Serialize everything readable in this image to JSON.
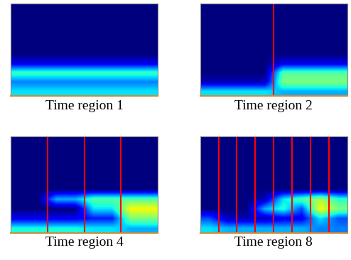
{
  "chart_data": [
    {
      "type": "heatmap",
      "title": "Time region 1",
      "tick_labels": false,
      "color_range": [
        0,
        1
      ],
      "boundaries": [],
      "cells": [
        [
          0,
          0,
          0,
          0,
          0,
          0,
          0,
          0
        ],
        [
          0,
          0,
          0,
          0,
          0,
          0,
          0,
          0
        ],
        [
          0,
          0,
          0,
          0,
          0,
          0,
          0,
          0
        ],
        [
          0,
          0,
          0,
          0,
          0,
          0,
          0,
          0
        ],
        [
          0,
          0,
          0,
          0,
          0,
          0,
          0,
          0
        ],
        [
          0,
          0,
          0,
          0,
          0,
          0,
          0,
          0
        ],
        [
          0.1,
          0.1,
          0.1,
          0.1,
          0.1,
          0.1,
          0.1,
          0.1
        ],
        [
          0.42,
          0.42,
          0.42,
          0.42,
          0.42,
          0.42,
          0.42,
          0.42
        ],
        [
          0.25,
          0.25,
          0.25,
          0.25,
          0.25,
          0.25,
          0.25,
          0.25
        ],
        [
          0.35,
          0.35,
          0.35,
          0.35,
          0.35,
          0.35,
          0.35,
          0.35
        ]
      ]
    },
    {
      "type": "heatmap",
      "title": "Time region 2",
      "tick_labels": false,
      "color_range": [
        0,
        1
      ],
      "boundaries": [
        4
      ],
      "cells": [
        [
          0,
          0,
          0,
          0,
          0,
          0,
          0,
          0
        ],
        [
          0,
          0,
          0,
          0,
          0,
          0,
          0,
          0
        ],
        [
          0,
          0,
          0,
          0,
          0,
          0,
          0,
          0
        ],
        [
          0,
          0,
          0,
          0,
          0,
          0,
          0,
          0
        ],
        [
          0,
          0,
          0,
          0,
          0,
          0,
          0,
          0
        ],
        [
          0,
          0,
          0,
          0,
          0,
          0,
          0,
          0
        ],
        [
          0,
          0,
          0,
          0,
          0.1,
          0.1,
          0.1,
          0.1
        ],
        [
          0,
          0,
          0,
          0,
          0.45,
          0.45,
          0.45,
          0.45
        ],
        [
          0.05,
          0.05,
          0.05,
          0.05,
          0.5,
          0.5,
          0.5,
          0.5
        ],
        [
          0.35,
          0.35,
          0.35,
          0.35,
          0.3,
          0.3,
          0.3,
          0.3
        ]
      ]
    },
    {
      "type": "heatmap",
      "title": "Time region 4",
      "tick_labels": false,
      "color_range": [
        0,
        1
      ],
      "boundaries": [
        2,
        4,
        6
      ],
      "cells": [
        [
          0,
          0,
          0,
          0,
          0,
          0,
          0,
          0
        ],
        [
          0,
          0,
          0,
          0,
          0,
          0,
          0,
          0
        ],
        [
          0,
          0,
          0,
          0,
          0,
          0,
          0,
          0
        ],
        [
          0,
          0,
          0,
          0,
          0,
          0,
          0,
          0
        ],
        [
          0,
          0,
          0,
          0,
          0,
          0,
          0,
          0
        ],
        [
          0,
          0,
          0,
          0,
          0,
          0,
          0,
          0
        ],
        [
          0,
          0,
          0.3,
          0.3,
          0.45,
          0.45,
          0.45,
          0.45
        ],
        [
          0,
          0,
          0,
          0,
          0.35,
          0.35,
          0.65,
          0.65
        ],
        [
          0.1,
          0.1,
          0.1,
          0.1,
          0.15,
          0.15,
          0.5,
          0.5
        ],
        [
          0.38,
          0.38,
          0.38,
          0.38,
          0.35,
          0.35,
          0.3,
          0.3
        ]
      ]
    },
    {
      "type": "heatmap",
      "title": "Time region 8",
      "tick_labels": false,
      "color_range": [
        0,
        1
      ],
      "boundaries": [
        1,
        2,
        3,
        4,
        5,
        6,
        7
      ],
      "cells": [
        [
          0,
          0,
          0,
          0,
          0,
          0,
          0,
          0
        ],
        [
          0,
          0,
          0,
          0,
          0,
          0,
          0,
          0
        ],
        [
          0,
          0,
          0,
          0,
          0,
          0,
          0,
          0
        ],
        [
          0,
          0,
          0,
          0,
          0,
          0,
          0,
          0
        ],
        [
          0,
          0,
          0,
          0,
          0,
          0,
          0,
          0
        ],
        [
          0,
          0,
          0,
          0,
          0,
          0,
          0,
          0
        ],
        [
          0,
          0,
          0,
          0.05,
          0.35,
          0.45,
          0.55,
          0.4
        ],
        [
          0,
          0,
          0,
          0.3,
          0.4,
          0.2,
          0.65,
          0.5
        ],
        [
          0.2,
          0.05,
          0.05,
          0.05,
          0.1,
          0.1,
          0.35,
          0.2
        ],
        [
          0.35,
          0.3,
          0.3,
          0.3,
          0.3,
          0.3,
          0.25,
          0.25
        ]
      ]
    }
  ]
}
